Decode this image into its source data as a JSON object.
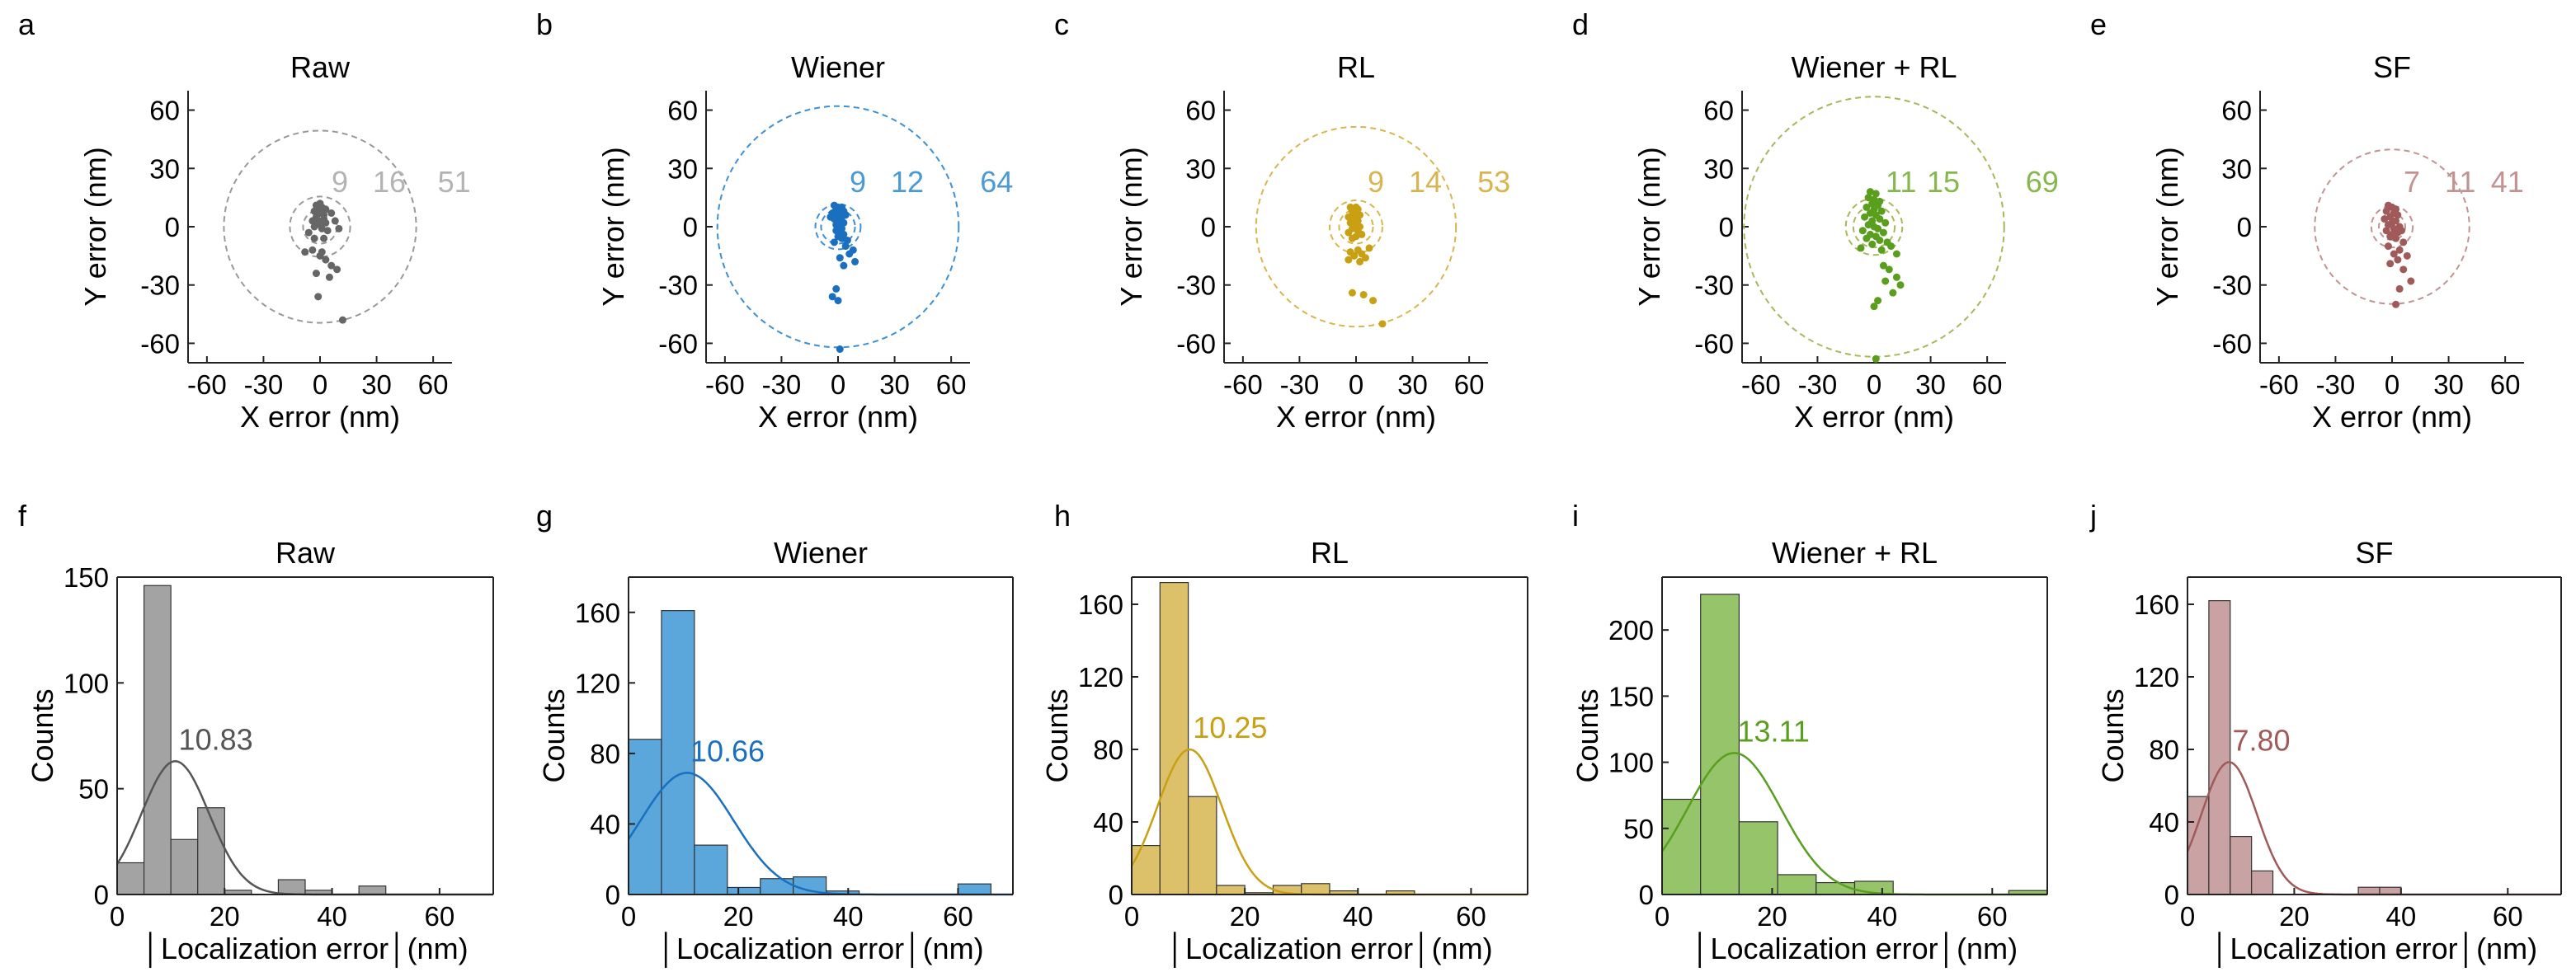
{
  "figure": {
    "scatter_panels": [
      {
        "letter": "a",
        "title": "Raw",
        "color": "#666666",
        "label_color": "#b3b3b3",
        "circle_color": "#999999",
        "radii": [
          9,
          16,
          51
        ],
        "radius_labels": [
          "9",
          "16",
          "51"
        ],
        "xlabel": "X error (nm)",
        "ylabel": "Y error (nm)"
      },
      {
        "letter": "b",
        "title": "Wiener",
        "color": "#1a6fbf",
        "label_color": "#4a9ad6",
        "circle_color": "#3d8fd6",
        "radii": [
          9,
          12,
          64
        ],
        "radius_labels": [
          "9",
          "12",
          "64"
        ],
        "xlabel": "X error (nm)",
        "ylabel": "Y error (nm)"
      },
      {
        "letter": "c",
        "title": "RL",
        "color": "#c9a014",
        "label_color": "#d9b550",
        "circle_color": "#d9b550",
        "radii": [
          9,
          14,
          53
        ],
        "radius_labels": [
          "9",
          "14",
          "53"
        ],
        "xlabel": "X error (nm)",
        "ylabel": "Y error (nm)"
      },
      {
        "letter": "d",
        "title": "Wiener + RL",
        "color": "#5a9e1e",
        "label_color": "#84b84c",
        "circle_color": "#a6b85a",
        "radii": [
          11,
          15,
          69
        ],
        "radius_labels": [
          "11",
          "15",
          "69"
        ],
        "xlabel": "X error (nm)",
        "ylabel": "Y error (nm)"
      },
      {
        "letter": "e",
        "title": "SF",
        "color": "#a05a5a",
        "label_color": "#c39292",
        "circle_color": "#c39292",
        "radii": [
          7,
          11,
          41
        ],
        "radius_labels": [
          "7",
          "11",
          "41"
        ],
        "xlabel": "X error (nm)",
        "ylabel": "Y error (nm)"
      }
    ],
    "hist_panels": [
      {
        "letter": "f",
        "title": "Raw",
        "bar_color": "#a3a3a3",
        "line_color": "#555555",
        "mean_label": "10.83",
        "xlabel": "│Localization error│(nm)",
        "ylabel": "Counts"
      },
      {
        "letter": "g",
        "title": "Wiener",
        "bar_color": "#5ba7dc",
        "line_color": "#1a6fbf",
        "mean_label": "10.66",
        "xlabel": "│Localization error│(nm)",
        "ylabel": "Counts"
      },
      {
        "letter": "h",
        "title": "RL",
        "bar_color": "#dcc06a",
        "line_color": "#c9a014",
        "mean_label": "10.25",
        "xlabel": "│Localization error│(nm)",
        "ylabel": "Counts"
      },
      {
        "letter": "i",
        "title": "Wiener + RL",
        "bar_color": "#96c46a",
        "line_color": "#5a9e1e",
        "mean_label": "13.11",
        "xlabel": "│Localization error│(nm)",
        "ylabel": "Counts"
      },
      {
        "letter": "j",
        "title": "SF",
        "bar_color": "#c9a3a3",
        "line_color": "#a05a5a",
        "mean_label": "7.80",
        "xlabel": "│Localization error│(nm)",
        "ylabel": "Counts"
      }
    ]
  },
  "chart_data": [
    {
      "type": "scatter",
      "title": "Raw",
      "xlabel": "X error (nm)",
      "ylabel": "Y error (nm)",
      "xlim": [
        -70,
        70
      ],
      "ylim": [
        -70,
        70
      ],
      "xticks": [
        -60,
        -30,
        0,
        30,
        60
      ],
      "yticks": [
        60,
        30,
        0,
        -30,
        -60
      ],
      "circle_radii": [
        9,
        16,
        51
      ],
      "points": [
        [
          -3,
          8
        ],
        [
          0,
          7
        ],
        [
          -2,
          5
        ],
        [
          2,
          4
        ],
        [
          -1,
          3
        ],
        [
          3,
          2
        ],
        [
          0,
          1
        ],
        [
          -3,
          0
        ],
        [
          1,
          -1
        ],
        [
          4,
          -2
        ],
        [
          -4,
          3
        ],
        [
          2,
          6
        ],
        [
          -1,
          9
        ],
        [
          1,
          10
        ],
        [
          -2,
          11
        ],
        [
          0,
          12
        ],
        [
          3,
          9
        ],
        [
          6,
          7
        ],
        [
          8,
          3
        ],
        [
          10,
          -1
        ],
        [
          -6,
          -3
        ],
        [
          -3,
          -6
        ],
        [
          2,
          -6
        ],
        [
          -8,
          -13
        ],
        [
          0,
          -15
        ],
        [
          3,
          -17
        ],
        [
          6,
          -20
        ],
        [
          9,
          -22
        ],
        [
          -2,
          -24
        ],
        [
          5,
          -26
        ],
        [
          -1,
          -36
        ],
        [
          12,
          -48
        ],
        [
          -4,
          -12
        ],
        [
          1,
          -13
        ]
      ]
    },
    {
      "type": "scatter",
      "title": "Wiener",
      "xlabel": "X error (nm)",
      "ylabel": "Y error (nm)",
      "xlim": [
        -70,
        70
      ],
      "ylim": [
        -70,
        70
      ],
      "xticks": [
        -60,
        -30,
        0,
        30,
        60
      ],
      "yticks": [
        60,
        30,
        0,
        -30,
        -60
      ],
      "circle_radii": [
        9,
        12,
        64
      ],
      "points": [
        [
          -2,
          11
        ],
        [
          0,
          10
        ],
        [
          2,
          10
        ],
        [
          -1,
          9
        ],
        [
          1,
          8
        ],
        [
          3,
          8
        ],
        [
          -3,
          7
        ],
        [
          0,
          6
        ],
        [
          2,
          5
        ],
        [
          -2,
          4
        ],
        [
          1,
          3
        ],
        [
          3,
          2
        ],
        [
          -1,
          1
        ],
        [
          0,
          0
        ],
        [
          2,
          -1
        ],
        [
          -1,
          -2
        ],
        [
          1,
          -3
        ],
        [
          3,
          -4
        ],
        [
          0,
          -5
        ],
        [
          2,
          -6
        ],
        [
          5,
          -7
        ],
        [
          -2,
          -8
        ],
        [
          4,
          -10
        ],
        [
          8,
          -12
        ],
        [
          6,
          -14
        ],
        [
          1,
          -16
        ],
        [
          9,
          -18
        ],
        [
          3,
          -20
        ],
        [
          -1,
          -32
        ],
        [
          -3,
          -36
        ],
        [
          0,
          -38
        ],
        [
          1,
          -63
        ],
        [
          -4,
          5
        ],
        [
          4,
          6
        ]
      ]
    },
    {
      "type": "scatter",
      "title": "RL",
      "xlabel": "X error (nm)",
      "ylabel": "Y error (nm)",
      "xlim": [
        -70,
        70
      ],
      "ylim": [
        -70,
        70
      ],
      "xticks": [
        -60,
        -30,
        0,
        30,
        60
      ],
      "yticks": [
        60,
        30,
        0,
        -30,
        -60
      ],
      "circle_radii": [
        9,
        14,
        53
      ],
      "points": [
        [
          -3,
          10
        ],
        [
          -1,
          9
        ],
        [
          1,
          9
        ],
        [
          -2,
          8
        ],
        [
          0,
          7
        ],
        [
          2,
          6
        ],
        [
          -4,
          5
        ],
        [
          -1,
          4
        ],
        [
          1,
          3
        ],
        [
          -3,
          2
        ],
        [
          0,
          1
        ],
        [
          2,
          0
        ],
        [
          -2,
          -1
        ],
        [
          1,
          -2
        ],
        [
          -4,
          -3
        ],
        [
          3,
          -4
        ],
        [
          0,
          -5
        ],
        [
          -2,
          -6
        ],
        [
          1,
          -12
        ],
        [
          -3,
          -13
        ],
        [
          3,
          -14
        ],
        [
          -1,
          -15
        ],
        [
          5,
          -16
        ],
        [
          -4,
          -17
        ],
        [
          2,
          -18
        ],
        [
          7,
          -11
        ],
        [
          -2,
          -34
        ],
        [
          4,
          -35
        ],
        [
          9,
          -38
        ],
        [
          14,
          -50
        ],
        [
          0,
          10
        ],
        [
          -1,
          6
        ]
      ]
    },
    {
      "type": "scatter",
      "title": "Wiener + RL",
      "xlabel": "X error (nm)",
      "ylabel": "Y error (nm)",
      "xlim": [
        -70,
        70
      ],
      "ylim": [
        -70,
        70
      ],
      "xticks": [
        -60,
        -30,
        0,
        30,
        60
      ],
      "yticks": [
        60,
        30,
        0,
        -30,
        -60
      ],
      "circle_radii": [
        11,
        15,
        69
      ],
      "points": [
        [
          -2,
          18
        ],
        [
          1,
          17
        ],
        [
          -3,
          15
        ],
        [
          0,
          14
        ],
        [
          3,
          13
        ],
        [
          -1,
          12
        ],
        [
          2,
          11
        ],
        [
          -4,
          10
        ],
        [
          0,
          9
        ],
        [
          4,
          8
        ],
        [
          -2,
          7
        ],
        [
          1,
          6
        ],
        [
          -5,
          5
        ],
        [
          3,
          4
        ],
        [
          -1,
          3
        ],
        [
          6,
          2
        ],
        [
          -3,
          1
        ],
        [
          0,
          0
        ],
        [
          2,
          -1
        ],
        [
          -6,
          -2
        ],
        [
          5,
          -3
        ],
        [
          -2,
          -4
        ],
        [
          1,
          -5
        ],
        [
          -4,
          -6
        ],
        [
          3,
          -7
        ],
        [
          7,
          -8
        ],
        [
          -1,
          -9
        ],
        [
          9,
          -10
        ],
        [
          -7,
          -11
        ],
        [
          4,
          -12
        ],
        [
          12,
          -14
        ],
        [
          8,
          -22
        ],
        [
          12,
          -26
        ],
        [
          6,
          -28
        ],
        [
          14,
          -30
        ],
        [
          10,
          -34
        ],
        [
          2,
          -38
        ],
        [
          0,
          -41
        ],
        [
          1,
          -68
        ],
        [
          5,
          -20
        ]
      ]
    },
    {
      "type": "scatter",
      "title": "SF",
      "xlabel": "X error (nm)",
      "ylabel": "Y error (nm)",
      "xlim": [
        -70,
        70
      ],
      "ylim": [
        -70,
        70
      ],
      "xticks": [
        -60,
        -30,
        0,
        30,
        60
      ],
      "yticks": [
        60,
        30,
        0,
        -30,
        -60
      ],
      "circle_radii": [
        7,
        11,
        41
      ],
      "points": [
        [
          -2,
          11
        ],
        [
          0,
          10
        ],
        [
          2,
          9
        ],
        [
          -3,
          8
        ],
        [
          1,
          7
        ],
        [
          3,
          6
        ],
        [
          -1,
          5
        ],
        [
          -4,
          4
        ],
        [
          2,
          3
        ],
        [
          0,
          2
        ],
        [
          -2,
          1
        ],
        [
          4,
          0
        ],
        [
          1,
          -1
        ],
        [
          -3,
          -2
        ],
        [
          3,
          -3
        ],
        [
          0,
          -4
        ],
        [
          -1,
          -5
        ],
        [
          2,
          -6
        ],
        [
          5,
          -2
        ],
        [
          6,
          -8
        ],
        [
          -2,
          -10
        ],
        [
          4,
          -12
        ],
        [
          1,
          -14
        ],
        [
          8,
          -15
        ],
        [
          3,
          -17
        ],
        [
          -1,
          -19
        ],
        [
          6,
          -22
        ],
        [
          10,
          -28
        ],
        [
          4,
          -32
        ],
        [
          2,
          -40
        ]
      ]
    },
    {
      "type": "bar",
      "title": "Raw",
      "xlabel": "│Localization error│(nm)",
      "ylabel": "Counts",
      "xlim": [
        0,
        70
      ],
      "ylim": [
        0,
        150
      ],
      "yticks": [
        0,
        50,
        100,
        150
      ],
      "xticks": [
        0,
        20,
        40,
        60
      ],
      "bin_edges": [
        0,
        5,
        10,
        15,
        20,
        25,
        30,
        35,
        40,
        45,
        50,
        55,
        60,
        65,
        70
      ],
      "values": [
        15,
        146,
        26,
        41,
        2,
        0,
        7,
        2,
        0,
        4,
        0,
        0,
        0,
        0
      ],
      "fit_mean": 10.83,
      "fit_sigma": 6.3,
      "fit_peak": 63
    },
    {
      "type": "bar",
      "title": "Wiener",
      "xlabel": "│Localization error│(nm)",
      "ylabel": "Counts",
      "xlim": [
        0,
        70
      ],
      "ylim": [
        0,
        180
      ],
      "yticks": [
        0,
        40,
        80,
        120,
        160
      ],
      "xticks": [
        0,
        20,
        40,
        60
      ],
      "bin_edges": [
        0,
        6,
        12,
        18,
        24,
        30,
        36,
        42,
        48,
        54,
        60,
        66
      ],
      "values": [
        88,
        161,
        28,
        4,
        9,
        10,
        2,
        0,
        0,
        0,
        6
      ],
      "fit_mean": 10.66,
      "fit_sigma": 8.5,
      "fit_peak": 69
    },
    {
      "type": "bar",
      "title": "RL",
      "xlabel": "│Localization error│(nm)",
      "ylabel": "Counts",
      "xlim": [
        0,
        70
      ],
      "ylim": [
        0,
        175
      ],
      "yticks": [
        0,
        40,
        80,
        120,
        160
      ],
      "xticks": [
        0,
        20,
        40,
        60
      ],
      "bin_edges": [
        0,
        5,
        10,
        15,
        20,
        25,
        30,
        35,
        40,
        45,
        50,
        55,
        60,
        65
      ],
      "values": [
        27,
        172,
        54,
        5,
        1,
        5,
        6,
        2,
        0,
        2,
        0,
        0,
        0
      ],
      "fit_mean": 10.25,
      "fit_sigma": 5.7,
      "fit_peak": 80
    },
    {
      "type": "bar",
      "title": "Wiener + RL",
      "xlabel": "│Localization error│(nm)",
      "ylabel": "Counts",
      "xlim": [
        0,
        70
      ],
      "ylim": [
        0,
        240
      ],
      "yticks": [
        0,
        50,
        100,
        150,
        200
      ],
      "xticks": [
        0,
        20,
        40,
        60
      ],
      "bin_edges": [
        0,
        7,
        14,
        21,
        28,
        35,
        42,
        49,
        56,
        63,
        70
      ],
      "values": [
        72,
        227,
        55,
        15,
        9,
        10,
        0,
        0,
        0,
        3
      ],
      "fit_mean": 13.11,
      "fit_sigma": 8.5,
      "fit_peak": 107
    },
    {
      "type": "bar",
      "title": "SF",
      "xlabel": "│Localization error│(nm)",
      "ylabel": "Counts",
      "xlim": [
        0,
        70
      ],
      "ylim": [
        0,
        175
      ],
      "yticks": [
        0,
        40,
        80,
        120,
        160
      ],
      "xticks": [
        0,
        20,
        40,
        60
      ],
      "bin_edges": [
        0,
        4,
        8,
        12,
        16,
        20,
        24,
        28,
        32,
        36,
        40
      ],
      "values": [
        54,
        162,
        32,
        13,
        0,
        0,
        0,
        0,
        4,
        4
      ],
      "fit_mean": 7.8,
      "fit_sigma": 5.2,
      "fit_peak": 73
    }
  ]
}
